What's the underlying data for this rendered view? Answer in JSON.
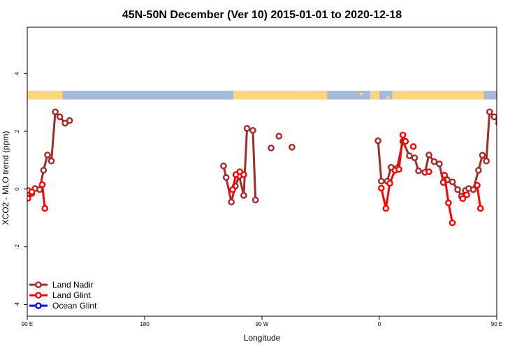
{
  "chart_data": {
    "type": "line",
    "title": "45N-50N December (Ver 10)   2015-01-01 to 2020-12-18",
    "xlabel": "Longitude",
    "ylabel": "XCO2 - MLO trend (ppm)",
    "xlim": [
      90,
      450
    ],
    "ylim": [
      -4.4,
      5.6
    ],
    "x_ticks": [
      {
        "value": 90,
        "label": "90 E"
      },
      {
        "value": 180,
        "label": "180"
      },
      {
        "value": 270,
        "label": "90 W"
      },
      {
        "value": 360,
        "label": "0"
      },
      {
        "value": 450,
        "label": "90 E"
      }
    ],
    "y_ticks": [
      {
        "value": -4,
        "label": "-4"
      },
      {
        "value": -2,
        "label": "-2"
      },
      {
        "value": 0,
        "label": "0"
      },
      {
        "value": 2,
        "label": "2"
      },
      {
        "value": 4,
        "label": "4"
      }
    ],
    "map_strip": {
      "ymin": 3.1,
      "ymax": 3.4,
      "land_color": "#FAD77B",
      "ocean_color": "#A5B9DC"
    },
    "series": [
      {
        "name": "Land Nadir",
        "color": "#A52A2A",
        "segments": [
          [
            [
              90.5,
              -0.05
            ],
            [
              93.5,
              -0.15
            ],
            [
              96,
              0.02
            ],
            [
              99.5,
              -0.02
            ],
            [
              102.5,
              0.65
            ],
            [
              105.5,
              1.18
            ],
            [
              108.5,
              0.97
            ],
            [
              111.5,
              2.67
            ],
            [
              115,
              2.5
            ],
            [
              119,
              2.28
            ],
            [
              122.5,
              2.37
            ]
          ],
          [
            [
              240.5,
              0.8
            ],
            [
              242.5,
              0.4
            ],
            [
              246.5,
              -0.45
            ],
            [
              249.5,
              0.1
            ],
            [
              252.5,
              0.45
            ],
            [
              256,
              -0.22
            ],
            [
              258.5,
              2.1
            ],
            [
              263,
              2.03
            ],
            [
              265,
              -0.38
            ]
          ],
          [
            [
              277,
              1.42
            ]
          ],
          [
            [
              283,
              1.83
            ]
          ],
          [
            [
              293,
              1.45
            ]
          ],
          [
            [
              359,
              1.67
            ],
            [
              361.5,
              0.27
            ],
            [
              366,
              0.27
            ],
            [
              369,
              0.75
            ],
            [
              373.5,
              0.72
            ],
            [
              378,
              1.65
            ],
            [
              383,
              1.15
            ],
            [
              387,
              1.08
            ],
            [
              390,
              0.63
            ],
            [
              395,
              0.58
            ],
            [
              398,
              1.18
            ],
            [
              402,
              0.95
            ],
            [
              406,
              0.87
            ],
            [
              409,
              0.23
            ],
            [
              412,
              0.32
            ],
            [
              416,
              0.25
            ],
            [
              420,
              -0.02
            ],
            [
              423,
              -0.25
            ],
            [
              426,
              -0.05
            ],
            [
              428.5,
              0.02
            ],
            [
              432,
              -0.02
            ],
            [
              436,
              0.65
            ],
            [
              439,
              1.17
            ],
            [
              442,
              0.97
            ],
            [
              444.5,
              2.67
            ],
            [
              448,
              2.5
            ],
            [
              451.5,
              2.28
            ],
            [
              455,
              2.37
            ]
          ]
        ]
      },
      {
        "name": "Land Glint",
        "color": "#FF0000",
        "segments": [
          [
            [
              90.5,
              -0.32
            ],
            [
              93.5,
              -0.1
            ]
          ],
          [
            [
              101.5,
              0.15
            ],
            [
              103.5,
              -0.67
            ]
          ],
          [
            [
              247.5,
              -0.02
            ],
            [
              250,
              0.5
            ],
            [
              253,
              0.6
            ],
            [
              256,
              0.5
            ]
          ],
          [
            [
              361.5,
              0.03
            ],
            [
              365,
              -0.67
            ],
            [
              368,
              0.2
            ],
            [
              372,
              0.65
            ],
            [
              375,
              0.68
            ],
            [
              378,
              1.87
            ],
            [
              380,
              1.65
            ]
          ],
          [
            [
              386,
              1.47
            ]
          ],
          [
            [
              398,
              0.6
            ]
          ],
          [
            [
              410,
              0.48
            ],
            [
              413,
              -0.48
            ],
            [
              416,
              -1.17
            ]
          ],
          [
            [
              424,
              -0.33
            ],
            [
              427,
              -0.2
            ]
          ],
          [
            [
              435,
              0.13
            ],
            [
              437.5,
              -0.67
            ]
          ]
        ]
      },
      {
        "name": "Ocean Glint",
        "color": "#0000FF",
        "segments": []
      }
    ],
    "legend": {
      "position": "bottom-left",
      "entries": [
        "Land Nadir",
        "Land Glint",
        "Ocean Glint"
      ]
    }
  }
}
